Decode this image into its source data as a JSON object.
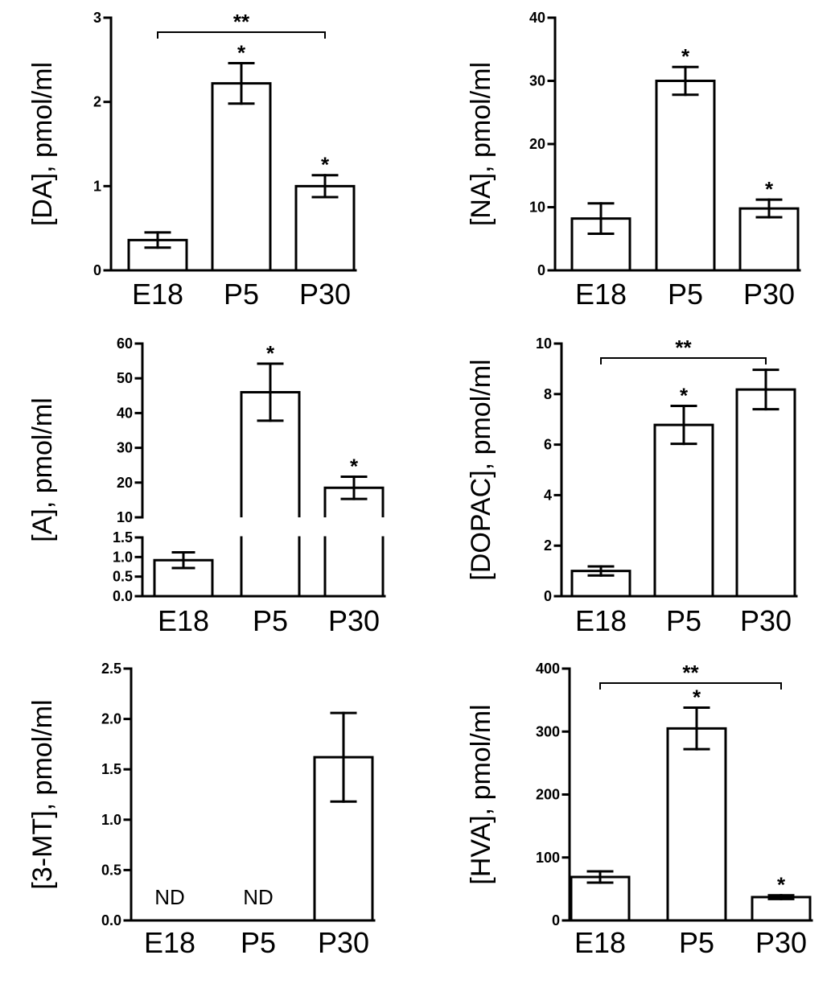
{
  "chart_data": [
    {
      "type": "bar",
      "ylabel": "[DA], pmol/ml",
      "categories": [
        "E18",
        "P5",
        "P30"
      ],
      "values": [
        0.36,
        2.22,
        1.0
      ],
      "errors": [
        0.09,
        0.24,
        0.13
      ],
      "ylim": [
        0,
        3
      ],
      "yticks": [
        "0",
        "1",
        "2",
        "3"
      ],
      "yticks_values": [
        0,
        1,
        2,
        3
      ],
      "stars": [
        "",
        "*",
        "*"
      ],
      "bracket": {
        "from": 0,
        "to": 2,
        "label": "**"
      }
    },
    {
      "type": "bar",
      "ylabel": "[NA], pmol/ml",
      "categories": [
        "E18",
        "P5",
        "P30"
      ],
      "values": [
        8.2,
        30.0,
        9.8
      ],
      "errors": [
        2.4,
        2.2,
        1.4
      ],
      "ylim": [
        0,
        40
      ],
      "yticks": [
        "0",
        "10",
        "20",
        "30",
        "40"
      ],
      "yticks_values": [
        0,
        10,
        20,
        30,
        40
      ],
      "stars": [
        "",
        "*",
        "*"
      ]
    },
    {
      "type": "bar",
      "ylabel": "[A], pmol/ml",
      "categories": [
        "E18",
        "P5",
        "P30"
      ],
      "values": [
        0.92,
        46.0,
        18.5
      ],
      "errors": [
        0.2,
        8.2,
        3.2
      ],
      "broken_axis": {
        "lower": {
          "ylim": [
            0,
            1.5
          ],
          "yticks": [
            "0.0",
            "0.5",
            "1.0",
            "1.5"
          ],
          "yticks_values": [
            0,
            0.5,
            1.0,
            1.5
          ]
        },
        "upper": {
          "ylim": [
            10,
            60
          ],
          "yticks": [
            "10",
            "20",
            "30",
            "40",
            "50",
            "60"
          ],
          "yticks_values": [
            10,
            20,
            30,
            40,
            50,
            60
          ]
        }
      },
      "stars": [
        "",
        "*",
        "*"
      ]
    },
    {
      "type": "bar",
      "ylabel": "[DOPAC], pmol/ml",
      "categories": [
        "E18",
        "P5",
        "P30"
      ],
      "values": [
        1.0,
        6.78,
        8.18
      ],
      "errors": [
        0.18,
        0.75,
        0.78
      ],
      "ylim": [
        0,
        10
      ],
      "yticks": [
        "0",
        "2",
        "4",
        "6",
        "8",
        "10"
      ],
      "yticks_values": [
        0,
        2,
        4,
        6,
        8,
        10
      ],
      "stars": [
        "",
        "*",
        ""
      ],
      "bracket": {
        "from": 0,
        "to": 2,
        "label": "**"
      }
    },
    {
      "type": "bar",
      "ylabel": "[3-MT], pmol/ml",
      "categories": [
        "E18",
        "P5",
        "P30"
      ],
      "values": [
        null,
        null,
        1.62
      ],
      "errors": [
        null,
        null,
        0.44
      ],
      "ylim": [
        0,
        2.5
      ],
      "yticks": [
        "0.0",
        "0.5",
        "1.0",
        "1.5",
        "2.0",
        "2.5"
      ],
      "yticks_values": [
        0,
        0.5,
        1.0,
        1.5,
        2.0,
        2.5
      ],
      "annotations": [
        "ND",
        "ND",
        ""
      ]
    },
    {
      "type": "bar",
      "ylabel": "[HVA], pmol/ml",
      "categories": [
        "E18",
        "P5",
        "P30"
      ],
      "values": [
        69,
        305,
        37
      ],
      "errors": [
        9,
        33,
        3
      ],
      "ylim": [
        0,
        400
      ],
      "yticks": [
        "0",
        "100",
        "200",
        "300",
        "400"
      ],
      "yticks_values": [
        0,
        100,
        200,
        300,
        400
      ],
      "stars": [
        "",
        "*",
        "*"
      ],
      "bracket": {
        "from": 0,
        "to": 2,
        "label": "**"
      }
    }
  ]
}
